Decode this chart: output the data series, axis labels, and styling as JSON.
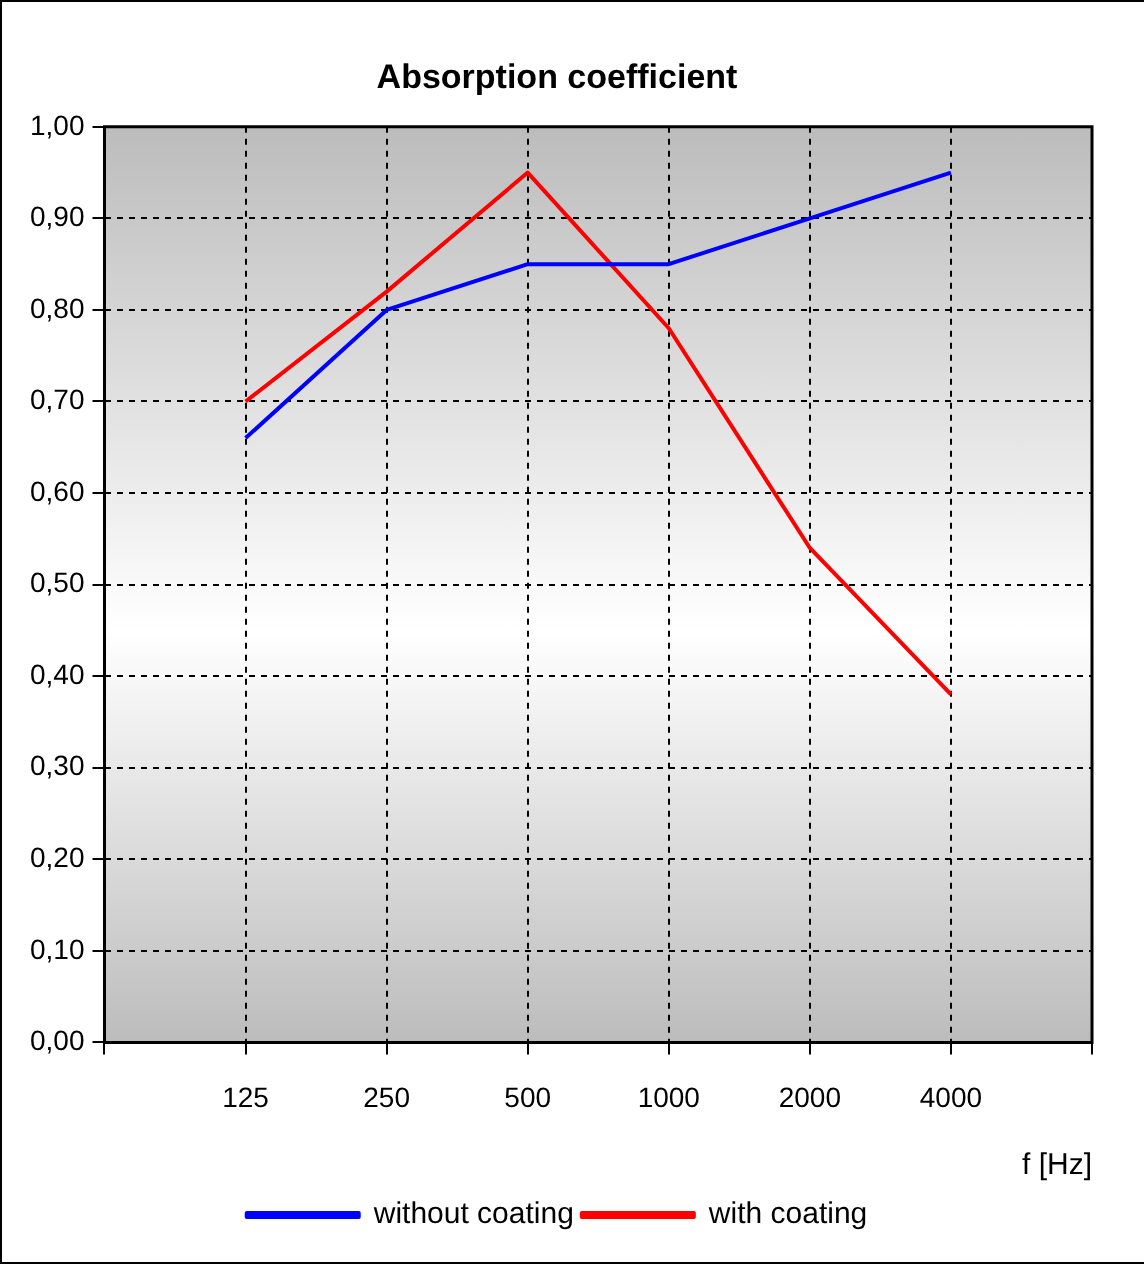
{
  "chart_data": {
    "type": "line",
    "title": "Absorption coefficient",
    "xlabel": "f [Hz]",
    "categories": [
      null,
      "125",
      "250",
      "500",
      "1000",
      "2000",
      "4000",
      null
    ],
    "series": [
      {
        "name": "without coating",
        "color": "#0000ff",
        "values": [
          null,
          0.66,
          0.8,
          0.85,
          0.85,
          0.9,
          0.95,
          null
        ]
      },
      {
        "name": "with coating",
        "color": "#ff0000",
        "values": [
          null,
          0.7,
          0.82,
          0.95,
          0.78,
          0.54,
          0.38,
          null
        ]
      }
    ],
    "ylim": [
      0,
      1
    ],
    "yticks": [
      {
        "value": 0,
        "label": "0,00"
      },
      {
        "value": 0.1,
        "label": "0,10"
      },
      {
        "value": 0.2,
        "label": "0,20"
      },
      {
        "value": 0.3,
        "label": "0,30"
      },
      {
        "value": 0.4,
        "label": "0,40"
      },
      {
        "value": 0.5,
        "label": "0,50"
      },
      {
        "value": 0.6,
        "label": "0,60"
      },
      {
        "value": 0.7,
        "label": "0,70"
      },
      {
        "value": 0.8,
        "label": "0,80"
      },
      {
        "value": 0.9,
        "label": "0,90"
      },
      {
        "value": 1,
        "label": "1,00"
      }
    ],
    "grid": true,
    "legend": "bottom",
    "marker": "none",
    "line_style": "solid"
  }
}
